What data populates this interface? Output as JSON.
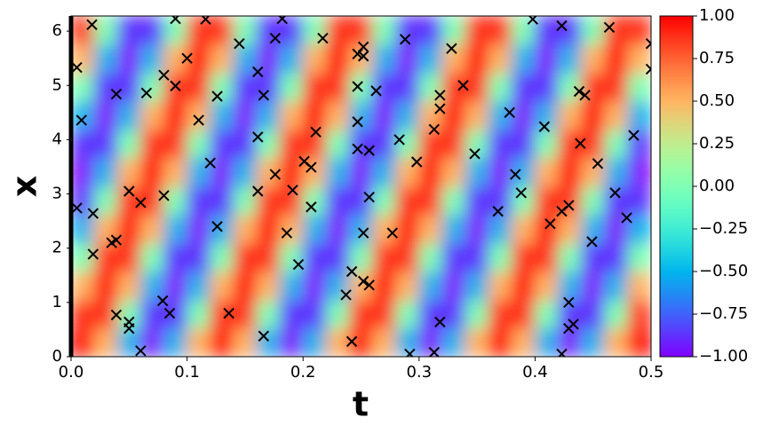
{
  "chart_data": {
    "type": "heatmap",
    "x_label": "t",
    "y_label": "x",
    "xlim": [
      0,
      0.5
    ],
    "ylim": [
      0,
      6.28
    ],
    "xticks": [
      {
        "value": 0,
        "label": "0.0"
      },
      0.1,
      0.2,
      0.3,
      0.4,
      0.5
    ],
    "yticks": [
      0,
      1,
      2,
      3,
      4,
      5,
      6
    ],
    "colormap": "rainbow",
    "clim": [
      -1,
      1
    ],
    "cticks": [
      {
        "value": -1,
        "label": "−1.00"
      },
      {
        "value": -0.75,
        "label": "−0.75"
      },
      {
        "value": -0.5,
        "label": "−0.50"
      },
      {
        "value": -0.25,
        "label": "−0.25"
      },
      {
        "value": 0,
        "label": "0.00"
      },
      {
        "value": 0.25,
        "label": "0.25"
      },
      {
        "value": 0.5,
        "label": "0.50"
      },
      {
        "value": 0.75,
        "label": "0.75"
      },
      {
        "value": 1,
        "label": "1.00"
      }
    ],
    "heatmap": {
      "t": [
        0.01,
        0.03,
        0.05,
        0.07,
        0.09,
        0.11,
        0.13,
        0.15,
        0.17,
        0.19,
        0.21,
        0.23,
        0.25,
        0.27,
        0.29,
        0.31,
        0.33,
        0.35,
        0.37,
        0.39,
        0.41,
        0.43,
        0.45,
        0.47,
        0.49
      ],
      "x": [
        0.26,
        0.79,
        1.31,
        1.83,
        2.36,
        2.88,
        3.4,
        3.93,
        4.45,
        4.97,
        5.5,
        6.02
      ],
      "z": [
        [
          1,
          0.5,
          -0.5,
          -1,
          -0.5,
          0.5,
          1,
          0.5,
          -0.5,
          -1,
          -0.5,
          0.5,
          1,
          0.5,
          -0.5,
          -1,
          -0.5,
          0.5,
          1,
          0.5,
          -0.5,
          -1,
          -0.5,
          0.5,
          1
        ],
        [
          0.87,
          0.87,
          0,
          -0.87,
          -0.87,
          0,
          0.87,
          0.87,
          0,
          -0.87,
          -0.87,
          0,
          0.87,
          0.87,
          0,
          -0.87,
          -0.87,
          0,
          0.87,
          0.87,
          0,
          -0.87,
          -0.87,
          0,
          0.87
        ],
        [
          0.5,
          1,
          0.5,
          -0.5,
          -1,
          -0.5,
          0.5,
          1,
          0.5,
          -0.5,
          -1,
          -0.5,
          0.5,
          1,
          0.5,
          -0.5,
          -1,
          -0.5,
          0.5,
          1,
          0.5,
          -0.5,
          -1,
          -0.5,
          0.5
        ],
        [
          0,
          0.87,
          0.87,
          0,
          -0.87,
          -0.87,
          0,
          0.87,
          0.87,
          0,
          -0.87,
          -0.87,
          0,
          0.87,
          0.87,
          0,
          -0.87,
          -0.87,
          0,
          0.87,
          0.87,
          0,
          -0.87,
          -0.87,
          0
        ],
        [
          -0.5,
          0.5,
          1,
          0.5,
          -0.5,
          -1,
          -0.5,
          0.5,
          1,
          0.5,
          -0.5,
          -1,
          -0.5,
          0.5,
          1,
          0.5,
          -0.5,
          -1,
          -0.5,
          0.5,
          1,
          0.5,
          -0.5,
          -1,
          -0.5
        ],
        [
          -0.87,
          0,
          0.87,
          0.87,
          0,
          -0.87,
          -0.87,
          0,
          0.87,
          0.87,
          0,
          -0.87,
          -0.87,
          0,
          0.87,
          0.87,
          0,
          -0.87,
          -0.87,
          0,
          0.87,
          0.87,
          0,
          -0.87,
          -0.87
        ],
        [
          -1,
          -0.5,
          0.5,
          1,
          0.5,
          -0.5,
          -1,
          -0.5,
          0.5,
          1,
          0.5,
          -0.5,
          -1,
          -0.5,
          0.5,
          1,
          0.5,
          -0.5,
          -1,
          -0.5,
          0.5,
          1,
          0.5,
          -0.5,
          -1
        ],
        [
          -0.87,
          -0.87,
          0,
          0.87,
          0.87,
          0,
          -0.87,
          -0.87,
          0,
          0.87,
          0.87,
          0,
          -0.87,
          -0.87,
          0,
          0.87,
          0.87,
          0,
          -0.87,
          -0.87,
          0,
          0.87,
          0.87,
          0,
          -0.87
        ],
        [
          -0.5,
          -1,
          -0.5,
          0.5,
          1,
          0.5,
          -0.5,
          -1,
          -0.5,
          0.5,
          1,
          0.5,
          -0.5,
          -1,
          -0.5,
          0.5,
          1,
          0.5,
          -0.5,
          -1,
          -0.5,
          0.5,
          1,
          0.5,
          -0.5
        ],
        [
          0,
          -0.87,
          -0.87,
          0,
          0.87,
          0.87,
          0,
          -0.87,
          -0.87,
          0,
          0.87,
          0.87,
          0,
          -0.87,
          -0.87,
          0,
          0.87,
          0.87,
          0,
          -0.87,
          -0.87,
          0,
          0.87,
          0.87,
          0
        ],
        [
          0.5,
          -0.5,
          -1,
          -0.5,
          0.5,
          1,
          0.5,
          -0.5,
          -1,
          -0.5,
          0.5,
          1,
          0.5,
          -0.5,
          -1,
          -0.5,
          0.5,
          1,
          0.5,
          -0.5,
          -1,
          -0.5,
          0.5,
          1,
          0.5
        ],
        [
          0.87,
          0,
          -0.87,
          -0.87,
          0,
          0.87,
          0.87,
          0,
          -0.87,
          -0.87,
          0,
          0.87,
          0.87,
          0,
          -0.87,
          -0.87,
          0,
          0.87,
          0.87,
          0,
          -0.87,
          -0.87,
          0,
          0.87,
          0.87
        ]
      ]
    },
    "points": {
      "color": "#000000",
      "t": [
        0.005,
        0.009,
        0.018,
        0.005,
        0.019,
        0.019,
        0.035,
        0.039,
        0.039,
        0.039,
        0.05,
        0.06,
        0.05,
        0.05,
        0.06,
        0.065,
        0.08,
        0.08,
        0.079,
        0.085,
        0.09,
        0.09,
        0.1,
        0.11,
        0.116,
        0.12,
        0.126,
        0.126,
        0.136,
        0.145,
        0.161,
        0.161,
        0.161,
        0.166,
        0.166,
        0.176,
        0.176,
        0.182,
        0.186,
        0.191,
        0.196,
        0.201,
        0.207,
        0.207,
        0.211,
        0.217,
        0.237,
        0.242,
        0.242,
        0.247,
        0.247,
        0.247,
        0.247,
        0.252,
        0.252,
        0.252,
        0.252,
        0.257,
        0.257,
        0.257,
        0.263,
        0.277,
        0.283,
        0.288,
        0.292,
        0.298,
        0.313,
        0.313,
        0.318,
        0.318,
        0.318,
        0.328,
        0.338,
        0.348,
        0.368,
        0.378,
        0.383,
        0.388,
        0.398,
        0.408,
        0.413,
        0.423,
        0.423,
        0.423,
        0.429,
        0.429,
        0.429,
        0.433,
        0.438,
        0.439,
        0.443,
        0.449,
        0.454,
        0.464,
        0.469,
        0.479,
        0.485,
        0.5,
        0.5
      ],
      "x": [
        5.33,
        4.36,
        6.12,
        2.74,
        2.64,
        1.89,
        2.1,
        2.15,
        0.77,
        4.84,
        3.05,
        2.84,
        0.64,
        0.52,
        0.11,
        4.86,
        5.19,
        2.97,
        1.03,
        0.8,
        6.23,
        4.99,
        5.5,
        4.36,
        6.22,
        3.57,
        4.8,
        2.4,
        0.8,
        5.77,
        5.25,
        4.05,
        3.05,
        4.82,
        0.38,
        5.87,
        3.36,
        6.23,
        2.28,
        3.07,
        1.7,
        3.6,
        3.49,
        2.76,
        4.14,
        5.87,
        1.14,
        1.57,
        0.28,
        5.58,
        4.98,
        4.33,
        3.83,
        5.71,
        5.54,
        2.28,
        1.39,
        1.32,
        2.94,
        3.8,
        4.9,
        2.28,
        4.0,
        5.85,
        0.05,
        3.59,
        4.19,
        0.08,
        4.82,
        4.57,
        0.64,
        5.68,
        5.0,
        3.74,
        2.68,
        4.5,
        3.36,
        3.02,
        6.22,
        4.24,
        2.45,
        6.1,
        0.05,
        2.68,
        2.79,
        1.0,
        0.52,
        0.6,
        4.89,
        3.93,
        4.82,
        2.12,
        3.56,
        6.07,
        3.02,
        2.56,
        4.08,
        5.77,
        5.3
      ]
    }
  }
}
